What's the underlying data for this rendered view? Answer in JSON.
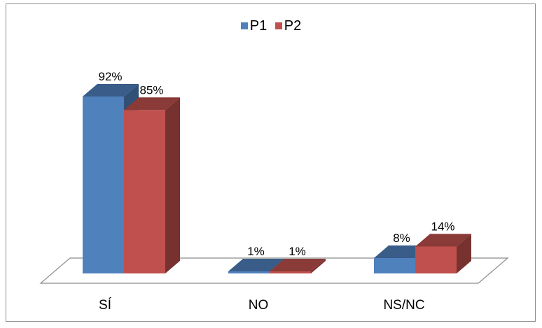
{
  "chart_data": {
    "type": "bar",
    "categories": [
      "SÍ",
      "NO",
      "NS/NC"
    ],
    "series": [
      {
        "name": "P1",
        "values": [
          92,
          1,
          8
        ],
        "labels": [
          "92%",
          "1%",
          "8%"
        ],
        "color": "#4f81bd"
      },
      {
        "name": "P2",
        "values": [
          85,
          1,
          14
        ],
        "labels": [
          "85%",
          "1%",
          "14%"
        ],
        "color": "#c0504d"
      }
    ],
    "title": "",
    "xlabel": "",
    "ylabel": "",
    "ylim": [
      0,
      100
    ],
    "legend_position": "top",
    "grid": false,
    "style": "3d-column"
  }
}
